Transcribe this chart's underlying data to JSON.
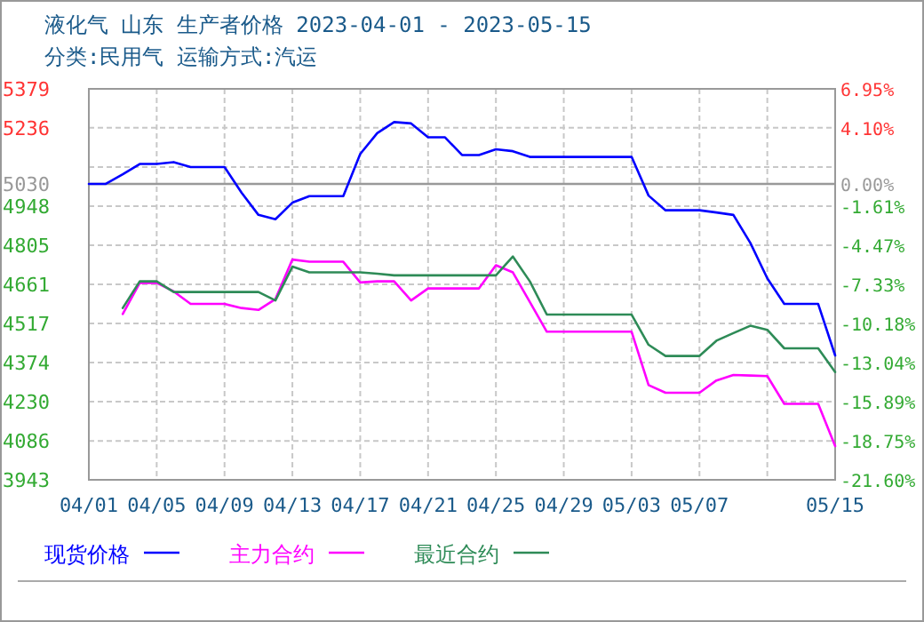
{
  "chart_data": {
    "type": "line",
    "title": "液化气 山东 生产者价格 2023-04-01 - 2023-05-15",
    "subtitle": "分类:民用气 运输方式:汽运",
    "x": [
      "2023-04-01",
      "2023-04-02",
      "2023-04-03",
      "2023-04-04",
      "2023-04-05",
      "2023-04-06",
      "2023-04-07",
      "2023-04-08",
      "2023-04-09",
      "2023-04-10",
      "2023-04-11",
      "2023-04-12",
      "2023-04-13",
      "2023-04-14",
      "2023-04-15",
      "2023-04-16",
      "2023-04-17",
      "2023-04-18",
      "2023-04-19",
      "2023-04-20",
      "2023-04-21",
      "2023-04-22",
      "2023-04-23",
      "2023-04-24",
      "2023-04-25",
      "2023-04-26",
      "2023-04-27",
      "2023-04-28",
      "2023-04-29",
      "2023-04-30",
      "2023-05-01",
      "2023-05-02",
      "2023-05-03",
      "2023-05-04",
      "2023-05-05",
      "2023-05-06",
      "2023-05-07",
      "2023-05-08",
      "2023-05-09",
      "2023-05-10",
      "2023-05-11",
      "2023-05-12",
      "2023-05-13",
      "2023-05-14",
      "2023-05-15"
    ],
    "series": [
      {
        "name": "现货价格",
        "color": "#0000ff",
        "values": [
          5030,
          5030,
          5065,
          5103,
          5103,
          5110,
          5092,
          5092,
          5092,
          4998,
          4916,
          4900,
          4961,
          4985,
          4985,
          4985,
          5140,
          5216,
          5257,
          5252,
          5201,
          5201,
          5136,
          5136,
          5157,
          5150,
          5129,
          5129,
          5129,
          5129,
          5129,
          5129,
          5129,
          4987,
          4933,
          4933,
          4933,
          4925,
          4916,
          4813,
          4683,
          4589,
          4589,
          4589,
          4400
        ]
      },
      {
        "name": "主力合约",
        "color": "#ff00ff",
        "values": [
          null,
          null,
          4552,
          4666,
          4666,
          4635,
          4589,
          4589,
          4589,
          4574,
          4567,
          4607,
          4752,
          4744,
          4744,
          4744,
          4668,
          4672,
          4672,
          4602,
          4646,
          4646,
          4646,
          4646,
          4731,
          4705,
          4596,
          4487,
          4487,
          4487,
          4487,
          4487,
          4487,
          4291,
          4263,
          4263,
          4263,
          4308,
          4328,
          4326,
          4324,
          4222,
          4222,
          4222,
          4067
        ]
      },
      {
        "name": "最近合约",
        "color": "#2e8b57",
        "values": [
          null,
          null,
          4574,
          4672,
          4672,
          4633,
          4633,
          4633,
          4633,
          4633,
          4633,
          4602,
          4726,
          4705,
          4705,
          4705,
          4705,
          4700,
          4694,
          4694,
          4694,
          4694,
          4694,
          4694,
          4694,
          4763,
          4672,
          4550,
          4550,
          4550,
          4550,
          4550,
          4550,
          4439,
          4398,
          4398,
          4398,
          4454,
          4482,
          4509,
          4494,
          4426,
          4426,
          4426,
          4339
        ]
      }
    ],
    "xlim": [
      "2023-04-01",
      "2023-05-15"
    ],
    "xticks": [
      {
        "value": "2023-04-01",
        "label": "04/01"
      },
      {
        "value": "2023-04-05",
        "label": "04/05"
      },
      {
        "value": "2023-04-09",
        "label": "04/09"
      },
      {
        "value": "2023-04-13",
        "label": "04/13"
      },
      {
        "value": "2023-04-17",
        "label": "04/17"
      },
      {
        "value": "2023-04-21",
        "label": "04/21"
      },
      {
        "value": "2023-04-25",
        "label": "04/25"
      },
      {
        "value": "2023-04-29",
        "label": "04/29"
      },
      {
        "value": "2023-05-03",
        "label": "05/03"
      },
      {
        "value": "2023-05-07",
        "label": "05/07"
      },
      {
        "value": "2023-05-11",
        "label": null
      },
      {
        "value": "2023-05-15",
        "label": "05/15"
      }
    ],
    "ylim": [
      3943,
      5379
    ],
    "yticks": [
      5379,
      5236,
      {
        "value": 5092,
        "label": null
      },
      5030,
      4948,
      4805,
      4661,
      4517,
      4374,
      4230,
      4086,
      3943
    ],
    "y2lim": [
      -21.6,
      6.95
    ],
    "y2ticks": [
      {
        "value": 6.95,
        "label": "6.95%"
      },
      {
        "value": 4.1,
        "label": "4.10%"
      },
      {
        "value": 0,
        "label": "0.00%"
      },
      {
        "value": -1.61,
        "label": "-1.61%"
      },
      {
        "value": -4.47,
        "label": "-4.47%"
      },
      {
        "value": -7.33,
        "label": "-7.33%"
      },
      {
        "value": -10.18,
        "label": "-10.18%"
      },
      {
        "value": -13.04,
        "label": "-13.04%"
      },
      {
        "value": -15.89,
        "label": "-15.89%"
      },
      {
        "value": -18.75,
        "label": "-18.75%"
      },
      {
        "value": -21.6,
        "label": "-21.60%"
      }
    ],
    "ref_lines": [
      {
        "axis": "y",
        "value": 5030,
        "color": "#999999"
      }
    ],
    "grid": true,
    "legend": "bottom"
  }
}
